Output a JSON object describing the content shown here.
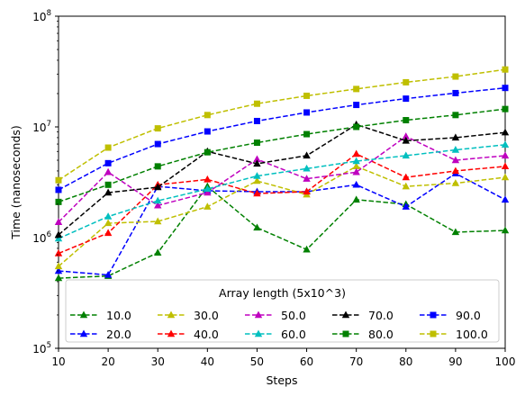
{
  "chart_data": {
    "type": "line",
    "title": "",
    "xlabel": "Steps",
    "ylabel": "Time (nanoseconds)",
    "x": [
      10,
      20,
      30,
      40,
      50,
      60,
      70,
      80,
      90,
      100
    ],
    "xlim": [
      10,
      100
    ],
    "ylim": [
      100000,
      100000000
    ],
    "yscale": "log",
    "grid": false,
    "xticks": [
      "10",
      "20",
      "30",
      "40",
      "50",
      "60",
      "70",
      "80",
      "90",
      "100"
    ],
    "yticks": [
      {
        "value": 100000,
        "base": "10",
        "exp": "5"
      },
      {
        "value": 1000000,
        "base": "10",
        "exp": "6"
      },
      {
        "value": 10000000,
        "base": "10",
        "exp": "7"
      },
      {
        "value": 100000000,
        "base": "10",
        "exp": "8"
      }
    ],
    "legend": {
      "title": "Array length (5x10^3)",
      "location": "lower center",
      "columns": 5
    },
    "series": [
      {
        "name": "10.0",
        "color": "#008000",
        "marker": "triangle",
        "values": [
          430000,
          450000,
          730000,
          2900000,
          1230000,
          780000,
          2200000,
          2000000,
          1120000,
          1160000
        ]
      },
      {
        "name": "20.0",
        "color": "#0000ff",
        "marker": "triangle",
        "values": [
          500000,
          460000,
          2900000,
          2650000,
          2600000,
          2600000,
          3000000,
          1900000,
          3800000,
          2200000
        ]
      },
      {
        "name": "30.0",
        "color": "#bfbf00",
        "marker": "triangle",
        "values": [
          550000,
          1350000,
          1400000,
          1900000,
          3250000,
          2450000,
          4400000,
          2900000,
          3100000,
          3500000
        ]
      },
      {
        "name": "40.0",
        "color": "#ff0000",
        "marker": "triangle",
        "values": [
          720000,
          1100000,
          3000000,
          3350000,
          2500000,
          2600000,
          5700000,
          3500000,
          4000000,
          4400000
        ]
      },
      {
        "name": "50.0",
        "color": "#bf00bf",
        "marker": "triangle",
        "values": [
          1380000,
          3900000,
          1950000,
          2550000,
          5100000,
          3400000,
          3900000,
          8200000,
          5000000,
          5500000
        ]
      },
      {
        "name": "60.0",
        "color": "#00bfbf",
        "marker": "triangle",
        "values": [
          980000,
          1550000,
          2150000,
          2750000,
          3600000,
          4200000,
          4900000,
          5500000,
          6200000,
          6900000
        ]
      },
      {
        "name": "70.0",
        "color": "#000000",
        "marker": "triangle",
        "values": [
          1060000,
          2550000,
          2850000,
          6000000,
          4650000,
          5500000,
          10500000,
          7500000,
          8000000,
          8900000
        ]
      },
      {
        "name": "80.0",
        "color": "#008000",
        "marker": "square",
        "values": [
          2100000,
          3000000,
          4400000,
          5900000,
          7200000,
          8600000,
          10000000,
          11500000,
          12800000,
          14500000
        ]
      },
      {
        "name": "90.0",
        "color": "#0000ff",
        "marker": "square",
        "values": [
          2700000,
          4700000,
          7000000,
          9100000,
          11300000,
          13500000,
          15800000,
          18000000,
          20200000,
          22500000
        ]
      },
      {
        "name": "100.0",
        "color": "#bfbf00",
        "marker": "square",
        "values": [
          3300000,
          6500000,
          9700000,
          12800000,
          16200000,
          19100000,
          22000000,
          25300000,
          28500000,
          33000000
        ]
      }
    ]
  }
}
